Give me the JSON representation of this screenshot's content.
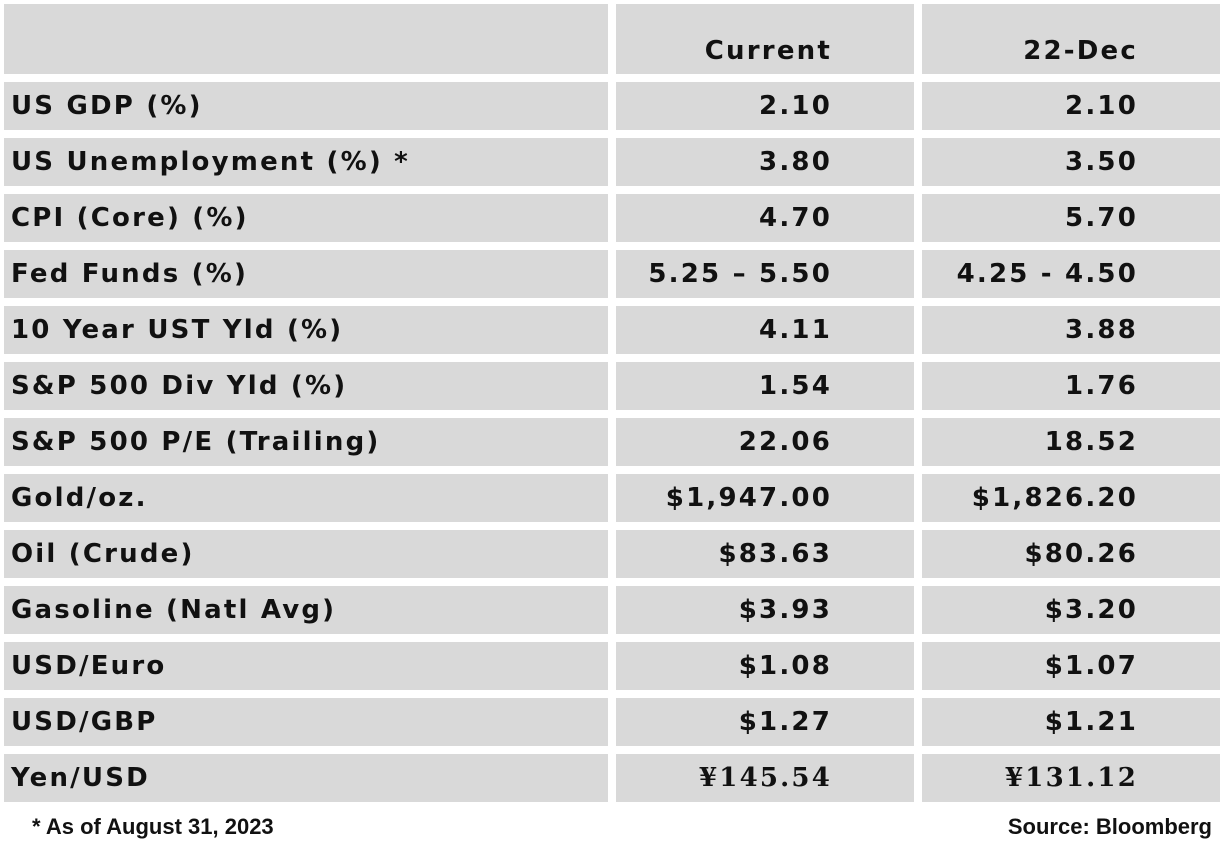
{
  "table": {
    "columns": [
      "",
      "Current",
      "22-Dec"
    ],
    "rows": [
      {
        "label": "US GDP (%)",
        "current": "2.10",
        "previous": "2.10"
      },
      {
        "label": "US Unemployment (%) *",
        "current": "3.80",
        "previous": "3.50"
      },
      {
        "label": "CPI (Core) (%)",
        "current": "4.70",
        "previous": "5.70"
      },
      {
        "label": "Fed Funds (%)",
        "current": "5.25 – 5.50",
        "previous": "4.25 - 4.50"
      },
      {
        "label": "10 Year UST Yld (%)",
        "current": "4.11",
        "previous": "3.88"
      },
      {
        "label": "S&P 500 Div Yld (%)",
        "current": "1.54",
        "previous": "1.76"
      },
      {
        "label": "S&P 500 P/E (Trailing)",
        "current": "22.06",
        "previous": "18.52"
      },
      {
        "label": "Gold/oz.",
        "current": "$1,947.00",
        "previous": "$1,826.20"
      },
      {
        "label": "Oil (Crude)",
        "current": "$83.63",
        "previous": "$80.26"
      },
      {
        "label": "Gasoline (Natl Avg)",
        "current": "$3.93",
        "previous": "$3.20"
      },
      {
        "label": "USD/Euro",
        "current": "$1.08",
        "previous": "$1.07"
      },
      {
        "label": "USD/GBP",
        "current": "$1.27",
        "previous": "$1.21"
      },
      {
        "label": "Yen/USD",
        "current": "¥145.54",
        "previous": "¥131.12"
      }
    ]
  },
  "footnote": "* As of August 31, 2023",
  "source": "Source: Bloomberg",
  "colors": {
    "cell_background": "#d9d9d9",
    "gridline": "#ffffff",
    "text": "#111111"
  }
}
